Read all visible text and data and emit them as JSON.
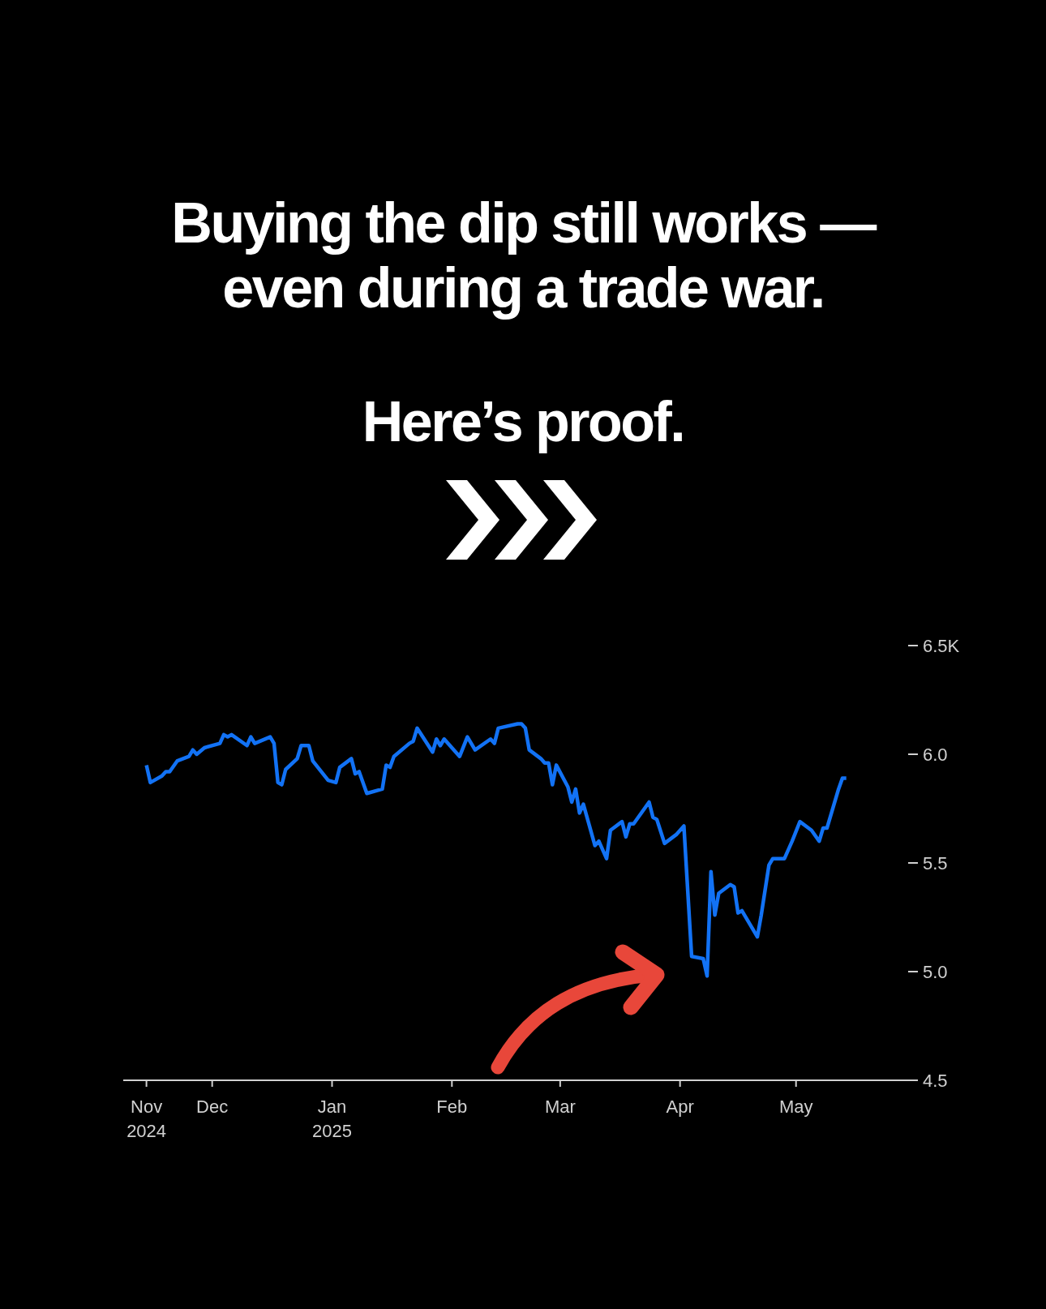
{
  "chart_data": {
    "type": "line",
    "title": "Buying the dip still works — even during a trade war.",
    "subtitle": "Here’s proof.",
    "xlim": [
      "2024-11-08",
      "2025-05-30"
    ],
    "xticks": [
      {
        "value": "2024-11-14",
        "label": "Nov\n2024"
      },
      {
        "value": "2024-12-01",
        "label": "Dec"
      },
      {
        "value": "2025-01-01",
        "label": "Jan\n2025"
      },
      {
        "value": "2025-02-01",
        "label": "Feb"
      },
      {
        "value": "2025-03-01",
        "label": "Mar"
      },
      {
        "value": "2025-04-01",
        "label": "Apr"
      },
      {
        "value": "2025-05-01",
        "label": "May"
      }
    ],
    "ylim": [
      4.5,
      6.5
    ],
    "yticks": [
      4.5,
      {
        "value": 5,
        "label": "5.0"
      },
      5.5,
      {
        "value": 6,
        "label": "6.0"
      },
      {
        "value": 6.5,
        "label": "6.5K"
      }
    ],
    "x": [
      "2024-11-14",
      "2024-11-15",
      "2024-11-18",
      "2024-11-19",
      "2024-11-20",
      "2024-11-22",
      "2024-11-25",
      "2024-11-26",
      "2024-11-27",
      "2024-11-29",
      "2024-12-03",
      "2024-12-04",
      "2024-12-05",
      "2024-12-06",
      "2024-12-10",
      "2024-12-11",
      "2024-12-12",
      "2024-12-16",
      "2024-12-17",
      "2024-12-18",
      "2024-12-19",
      "2024-12-20",
      "2024-12-23",
      "2024-12-24",
      "2024-12-26",
      "2024-12-27",
      "2024-12-31",
      "2025-01-02",
      "2025-01-03",
      "2025-01-06",
      "2025-01-07",
      "2025-01-08",
      "2025-01-10",
      "2025-01-14",
      "2025-01-15",
      "2025-01-16",
      "2025-01-17",
      "2025-01-21",
      "2025-01-22",
      "2025-01-23",
      "2025-01-27",
      "2025-01-28",
      "2025-01-29",
      "2025-01-30",
      "2025-02-03",
      "2025-02-05",
      "2025-02-07",
      "2025-02-11",
      "2025-02-12",
      "2025-02-13",
      "2025-02-18",
      "2025-02-19",
      "2025-02-20",
      "2025-02-21",
      "2025-02-24",
      "2025-02-25",
      "2025-02-26",
      "2025-02-27",
      "2025-02-28",
      "2025-03-03",
      "2025-03-04",
      "2025-03-05",
      "2025-03-06",
      "2025-03-07",
      "2025-03-10",
      "2025-03-11",
      "2025-03-13",
      "2025-03-14",
      "2025-03-17",
      "2025-03-18",
      "2025-03-19",
      "2025-03-20",
      "2025-03-24",
      "2025-03-25",
      "2025-03-26",
      "2025-03-28",
      "2025-03-31",
      "2025-04-02",
      "2025-04-04",
      "2025-04-07",
      "2025-04-08",
      "2025-04-09",
      "2025-04-10",
      "2025-04-11",
      "2025-04-14",
      "2025-04-15",
      "2025-04-16",
      "2025-04-17",
      "2025-04-21",
      "2025-04-22",
      "2025-04-24",
      "2025-04-25",
      "2025-04-28",
      "2025-04-29",
      "2025-04-30",
      "2025-05-02",
      "2025-05-05",
      "2025-05-07",
      "2025-05-08",
      "2025-05-09",
      "2025-05-12",
      "2025-05-13",
      "2025-05-14"
    ],
    "series": [
      {
        "color": "#1272f5",
        "values": [
          5.95,
          5.87,
          5.9,
          5.92,
          5.92,
          5.97,
          5.99,
          6.02,
          6.0,
          6.03,
          6.05,
          6.09,
          6.08,
          6.09,
          6.04,
          6.08,
          6.05,
          6.08,
          6.05,
          5.87,
          5.86,
          5.93,
          5.98,
          6.04,
          6.04,
          5.97,
          5.88,
          5.87,
          5.94,
          5.98,
          5.91,
          5.92,
          5.82,
          5.84,
          5.95,
          5.94,
          5.99,
          6.05,
          6.06,
          6.12,
          6.01,
          6.07,
          6.04,
          6.07,
          5.99,
          6.08,
          6.02,
          6.07,
          6.05,
          6.12,
          6.14,
          6.14,
          6.12,
          6.02,
          5.98,
          5.96,
          5.96,
          5.86,
          5.95,
          5.85,
          5.78,
          5.84,
          5.73,
          5.77,
          5.58,
          5.6,
          5.52,
          5.65,
          5.69,
          5.62,
          5.68,
          5.68,
          5.78,
          5.71,
          5.7,
          5.59,
          5.63,
          5.67,
          5.07,
          5.06,
          4.98,
          5.46,
          5.26,
          5.36,
          5.4,
          5.39,
          5.27,
          5.28,
          5.16,
          5.26,
          5.49,
          5.52,
          5.52,
          5.56,
          5.6,
          5.69,
          5.65,
          5.6,
          5.66,
          5.66,
          5.84,
          5.89,
          5.89
        ]
      }
    ],
    "grid": false,
    "legend": false,
    "marker": "none",
    "line_style": "solid"
  }
}
